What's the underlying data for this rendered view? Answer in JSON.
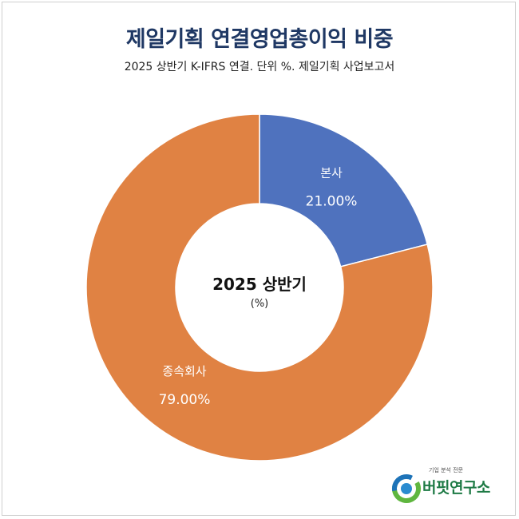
{
  "title": "제일기획 연결영업총이익 비중",
  "subtitle": "2025 상반기 K-IFRS 연결. 단위 %. 제일기획 사업보고서",
  "center": {
    "title": "2025 상반기",
    "unit": "(%)"
  },
  "chart_data": {
    "type": "pie",
    "donut": true,
    "title": "제일기획 연결영업총이익 비중",
    "subtitle": "2025 상반기 K-IFRS 연결. 단위 %. 제일기획 사업보고서",
    "center_label": "2025 상반기",
    "unit": "(%)",
    "categories": [
      "본사",
      "종속회사"
    ],
    "values": [
      21.0,
      79.0
    ],
    "value_labels": [
      "21.00%",
      "79.00%"
    ],
    "colors": [
      "#4f72be",
      "#e08243"
    ],
    "start": "12 o'clock, clockwise"
  },
  "logo": {
    "tagline": "기업 분석 전문",
    "name": "버핏연구소",
    "icon": "bf-ring-icon"
  }
}
